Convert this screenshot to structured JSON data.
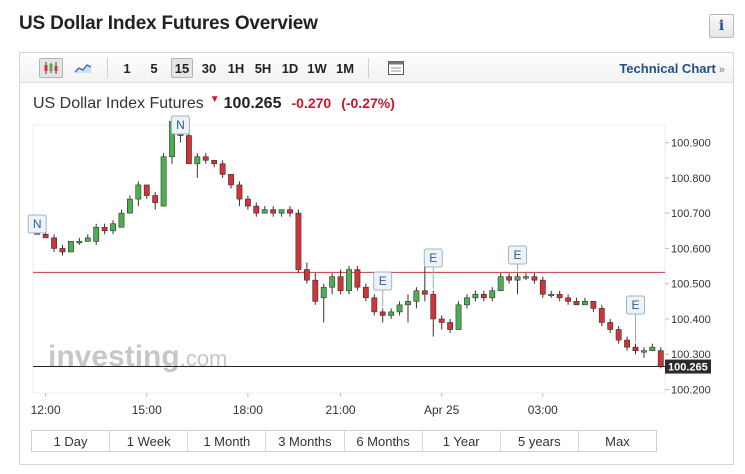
{
  "page": {
    "title": "US Dollar Index Futures Overview",
    "info_icon": "i"
  },
  "toolbar": {
    "chart_types": [
      "candlestick-icon",
      "area-chart-icon"
    ],
    "intervals": [
      "1",
      "5",
      "15",
      "30",
      "1H",
      "5H",
      "1D",
      "1W",
      "1M"
    ],
    "active_interval": "15",
    "settings_icon": "window-icon",
    "technical_chart_label": "Technical Chart",
    "technical_chart_arrow": "»"
  },
  "quote": {
    "name": "US Dollar Index Futures",
    "price": "100.265",
    "change": "-0.270",
    "change_pct": "(-0.27%)",
    "direction_icon": "down-triangle-icon",
    "down_color": "#d0142c"
  },
  "watermark": {
    "text_bold": "investing",
    "text_light": ".com"
  },
  "range_buttons": [
    "1 Day",
    "1 Week",
    "1 Month",
    "3 Months",
    "6 Months",
    "1 Year",
    "5 years",
    "Max"
  ],
  "chart_data": {
    "type": "candlestick",
    "title": "US Dollar Index Futures",
    "x_tick_labels": [
      "12:00",
      "15:00",
      "18:00",
      "21:00",
      "Apr 25",
      "03:00"
    ],
    "y_tick_labels": [
      "100.900",
      "100.800",
      "100.700",
      "100.600",
      "100.500",
      "100.400",
      "100.300",
      "100.200"
    ],
    "ylim": [
      100.2,
      101.0
    ],
    "current_price_label": "100.265",
    "current_price": 100.265,
    "reference_line": 100.532,
    "up_color": "#4caf50",
    "down_color": "#d03438",
    "reference_line_color": "#c23a3a",
    "candles": [
      [
        100.65,
        100.66,
        100.64,
        100.64
      ],
      [
        100.64,
        100.65,
        100.63,
        100.63
      ],
      [
        100.63,
        100.64,
        100.59,
        100.6
      ],
      [
        100.6,
        100.61,
        100.58,
        100.59
      ],
      [
        100.59,
        100.62,
        100.59,
        100.62
      ],
      [
        100.62,
        100.63,
        100.61,
        100.62
      ],
      [
        100.62,
        100.64,
        100.62,
        100.63
      ],
      [
        100.62,
        100.67,
        100.61,
        100.66
      ],
      [
        100.66,
        100.67,
        100.64,
        100.65
      ],
      [
        100.65,
        100.68,
        100.64,
        100.67
      ],
      [
        100.66,
        100.71,
        100.66,
        100.7
      ],
      [
        100.7,
        100.75,
        100.7,
        100.74
      ],
      [
        100.74,
        100.79,
        100.72,
        100.78
      ],
      [
        100.78,
        100.78,
        100.74,
        100.75
      ],
      [
        100.75,
        100.76,
        100.71,
        100.73
      ],
      [
        100.72,
        100.87,
        100.72,
        100.86
      ],
      [
        100.86,
        100.97,
        100.84,
        100.96
      ],
      [
        100.96,
        100.97,
        100.9,
        100.92
      ],
      [
        100.92,
        100.93,
        100.84,
        100.84
      ],
      [
        100.84,
        100.87,
        100.8,
        100.86
      ],
      [
        100.86,
        100.87,
        100.84,
        100.85
      ],
      [
        100.85,
        100.85,
        100.83,
        100.84
      ],
      [
        100.84,
        100.85,
        100.8,
        100.81
      ],
      [
        100.81,
        100.81,
        100.77,
        100.78
      ],
      [
        100.78,
        100.79,
        100.72,
        100.74
      ],
      [
        100.74,
        100.75,
        100.71,
        100.72
      ],
      [
        100.72,
        100.73,
        100.69,
        100.7
      ],
      [
        100.7,
        100.72,
        100.7,
        100.71
      ],
      [
        100.71,
        100.72,
        100.69,
        100.7
      ],
      [
        100.7,
        100.71,
        100.69,
        100.71
      ],
      [
        100.71,
        100.72,
        100.69,
        100.7
      ],
      [
        100.7,
        100.71,
        100.53,
        100.54
      ],
      [
        100.54,
        100.56,
        100.5,
        100.51
      ],
      [
        100.51,
        100.53,
        100.44,
        100.45
      ],
      [
        100.46,
        100.5,
        100.39,
        100.49
      ],
      [
        100.49,
        100.53,
        100.47,
        100.52
      ],
      [
        100.52,
        100.54,
        100.47,
        100.48
      ],
      [
        100.48,
        100.55,
        100.47,
        100.54
      ],
      [
        100.54,
        100.55,
        100.48,
        100.49
      ],
      [
        100.49,
        100.5,
        100.45,
        100.46
      ],
      [
        100.46,
        100.47,
        100.41,
        100.42
      ],
      [
        100.42,
        100.43,
        100.39,
        100.41
      ],
      [
        100.41,
        100.43,
        100.4,
        100.42
      ],
      [
        100.42,
        100.45,
        100.41,
        100.44
      ],
      [
        100.44,
        100.47,
        100.39,
        100.45
      ],
      [
        100.45,
        100.49,
        100.43,
        100.48
      ],
      [
        100.48,
        100.55,
        100.45,
        100.47
      ],
      [
        100.47,
        100.48,
        100.35,
        100.4
      ],
      [
        100.4,
        100.41,
        100.37,
        100.39
      ],
      [
        100.39,
        100.4,
        100.36,
        100.37
      ],
      [
        100.37,
        100.45,
        100.37,
        100.44
      ],
      [
        100.44,
        100.47,
        100.43,
        100.46
      ],
      [
        100.46,
        100.48,
        100.45,
        100.47
      ],
      [
        100.47,
        100.48,
        100.45,
        100.46
      ],
      [
        100.46,
        100.49,
        100.45,
        100.48
      ],
      [
        100.48,
        100.53,
        100.48,
        100.52
      ],
      [
        100.52,
        100.53,
        100.5,
        100.51
      ],
      [
        100.51,
        100.53,
        100.47,
        100.52
      ],
      [
        100.52,
        100.53,
        100.51,
        100.52
      ],
      [
        100.52,
        100.53,
        100.5,
        100.51
      ],
      [
        100.51,
        100.52,
        100.46,
        100.47
      ],
      [
        100.47,
        100.48,
        100.46,
        100.47
      ],
      [
        100.47,
        100.48,
        100.45,
        100.46
      ],
      [
        100.46,
        100.47,
        100.44,
        100.45
      ],
      [
        100.45,
        100.46,
        100.44,
        100.44
      ],
      [
        100.44,
        100.46,
        100.44,
        100.45
      ],
      [
        100.45,
        100.45,
        100.42,
        100.43
      ],
      [
        100.43,
        100.44,
        100.38,
        100.39
      ],
      [
        100.39,
        100.4,
        100.36,
        100.37
      ],
      [
        100.37,
        100.38,
        100.33,
        100.34
      ],
      [
        100.34,
        100.35,
        100.31,
        100.32
      ],
      [
        100.32,
        100.33,
        100.3,
        100.31
      ],
      [
        100.31,
        100.32,
        100.29,
        100.31
      ],
      [
        100.31,
        100.33,
        100.31,
        100.32
      ],
      [
        100.31,
        100.32,
        100.26,
        100.265
      ]
    ],
    "event_markers": [
      {
        "label": "N",
        "candle": 0
      },
      {
        "label": "N",
        "candle": 17
      },
      {
        "label": "E",
        "candle": 41
      },
      {
        "label": "E",
        "candle": 47
      },
      {
        "label": "E",
        "candle": 57
      },
      {
        "label": "E",
        "candle": 71
      }
    ]
  }
}
